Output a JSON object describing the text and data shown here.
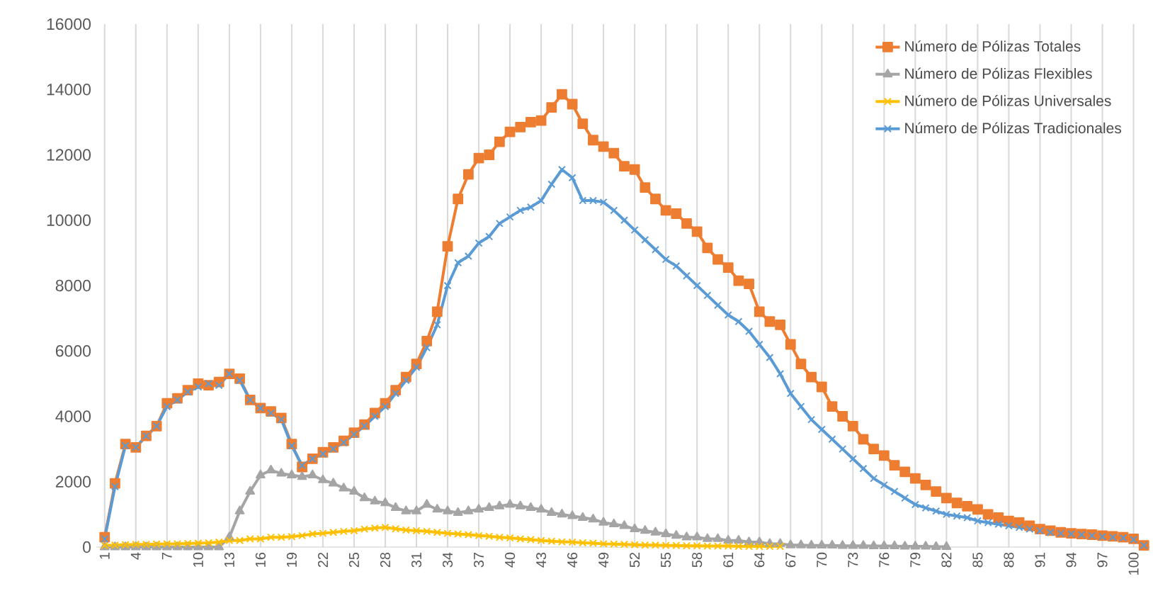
{
  "chart_data": {
    "type": "line",
    "categories": [
      "1",
      null,
      null,
      "4",
      null,
      null,
      "7",
      null,
      null,
      "10",
      null,
      null,
      "13",
      null,
      null,
      "16",
      null,
      null,
      "19",
      null,
      null,
      "22",
      null,
      null,
      "25",
      null,
      null,
      "28",
      null,
      null,
      "31",
      null,
      null,
      "34",
      null,
      null,
      "37",
      null,
      null,
      "40",
      null,
      null,
      "43",
      null,
      null,
      "46",
      null,
      null,
      "49",
      null,
      null,
      "52",
      null,
      null,
      "55",
      null,
      null,
      "58",
      null,
      null,
      "61",
      null,
      null,
      "64",
      null,
      null,
      "67",
      null,
      null,
      "70",
      null,
      null,
      "73",
      null,
      null,
      "76",
      null,
      null,
      "79",
      null,
      null,
      "82",
      null,
      null,
      "85",
      null,
      null,
      "88",
      null,
      null,
      "91",
      null,
      null,
      "94",
      null,
      null,
      "97",
      null,
      null,
      "100",
      null
    ],
    "series": [
      {
        "name": "Número de Pólizas Totales",
        "color": "#ed7d31",
        "marker": "square",
        "values": [
          300,
          1950,
          3150,
          3050,
          3400,
          3700,
          4400,
          4550,
          4800,
          5000,
          4950,
          5050,
          5300,
          5150,
          4500,
          4250,
          4150,
          3950,
          3150,
          2450,
          2700,
          2900,
          3050,
          3250,
          3500,
          3750,
          4100,
          4400,
          4800,
          5200,
          5600,
          6300,
          7200,
          9200,
          10650,
          11400,
          11900,
          12000,
          12400,
          12700,
          12850,
          13000,
          13050,
          13450,
          13850,
          13550,
          12950,
          12450,
          12250,
          12050,
          11650,
          11550,
          11000,
          10650,
          10300,
          10200,
          9900,
          9650,
          9150,
          8800,
          8550,
          8150,
          8050,
          7200,
          6900,
          6800,
          6200,
          5600,
          5200,
          4900,
          4300,
          4000,
          3700,
          3300,
          3000,
          2800,
          2500,
          2300,
          2100,
          1900,
          1700,
          1500,
          1350,
          1250,
          1150,
          1000,
          900,
          800,
          750,
          650,
          550,
          500,
          450,
          420,
          400,
          380,
          350,
          330,
          300,
          250,
          50
        ]
      },
      {
        "name": "Número de Pólizas Flexibles",
        "color": "#a5a5a5",
        "marker": "triangle",
        "values": [
          0,
          0,
          0,
          0,
          0,
          0,
          0,
          0,
          0,
          0,
          0,
          0,
          300,
          1100,
          1700,
          2200,
          2350,
          2250,
          2200,
          2150,
          2200,
          2050,
          1950,
          1800,
          1700,
          1500,
          1400,
          1350,
          1200,
          1100,
          1100,
          1300,
          1150,
          1100,
          1050,
          1100,
          1150,
          1200,
          1250,
          1300,
          1250,
          1200,
          1150,
          1050,
          1000,
          950,
          900,
          850,
          750,
          700,
          650,
          550,
          500,
          450,
          400,
          350,
          300,
          300,
          250,
          250,
          200,
          200,
          150,
          150,
          100,
          100,
          60,
          60,
          50,
          50,
          50,
          40,
          40,
          40,
          30,
          30,
          30,
          20,
          20,
          20,
          10,
          10,
          null,
          null,
          null,
          null,
          null,
          null,
          null,
          null,
          null,
          null,
          null,
          null,
          null,
          null,
          null,
          null,
          null,
          null,
          null
        ]
      },
      {
        "name": "Número de Pólizas Universales",
        "color": "#ffc000",
        "marker": "cross",
        "values": [
          50,
          60,
          70,
          80,
          80,
          90,
          100,
          100,
          110,
          120,
          130,
          150,
          200,
          200,
          250,
          250,
          300,
          300,
          320,
          350,
          400,
          420,
          450,
          480,
          500,
          550,
          580,
          600,
          560,
          520,
          500,
          480,
          450,
          420,
          400,
          380,
          350,
          330,
          300,
          280,
          250,
          230,
          200,
          180,
          160,
          150,
          130,
          120,
          100,
          90,
          80,
          70,
          60,
          60,
          50,
          50,
          40,
          40,
          30,
          30,
          30,
          20,
          20,
          20,
          20,
          20,
          null,
          null,
          null,
          null,
          null,
          null,
          null,
          null,
          null,
          null,
          null,
          null,
          null,
          null,
          null,
          null,
          null,
          null,
          null,
          null,
          null,
          null,
          null,
          null,
          null,
          null,
          null,
          null,
          null,
          null,
          null,
          null,
          null,
          null,
          null
        ]
      },
      {
        "name": "Número de Pólizas Tradicionales",
        "color": "#5b9bd5",
        "marker": "cross",
        "values": [
          250,
          1850,
          3100,
          3050,
          3400,
          3700,
          4300,
          4500,
          4750,
          4900,
          5000,
          4950,
          5300,
          5100,
          4500,
          4250,
          4100,
          3900,
          3100,
          2500,
          2700,
          2850,
          3000,
          3200,
          3450,
          3700,
          4000,
          4300,
          4700,
          5100,
          5500,
          6100,
          6800,
          8000,
          8700,
          8900,
          9300,
          9500,
          9900,
          10100,
          10300,
          10400,
          10600,
          11100,
          11550,
          11300,
          10600,
          10600,
          10550,
          10300,
          10000,
          9700,
          9400,
          9100,
          8800,
          8600,
          8300,
          8000,
          7700,
          7400,
          7100,
          6900,
          6600,
          6200,
          5800,
          5300,
          4700,
          4300,
          3900,
          3600,
          3300,
          3000,
          2700,
          2400,
          2100,
          1900,
          1700,
          1500,
          1300,
          1200,
          1100,
          1000,
          950,
          900,
          800,
          750,
          700,
          650,
          600,
          550,
          500,
          450,
          420,
          400,
          380,
          350,
          320,
          300,
          280,
          230,
          50
        ]
      }
    ],
    "ylim": [
      0,
      16000
    ],
    "yticks": [
      0,
      2000,
      4000,
      6000,
      8000,
      10000,
      12000,
      14000,
      16000
    ],
    "grid": "x",
    "legend": "top right",
    "line_style": "solid"
  }
}
